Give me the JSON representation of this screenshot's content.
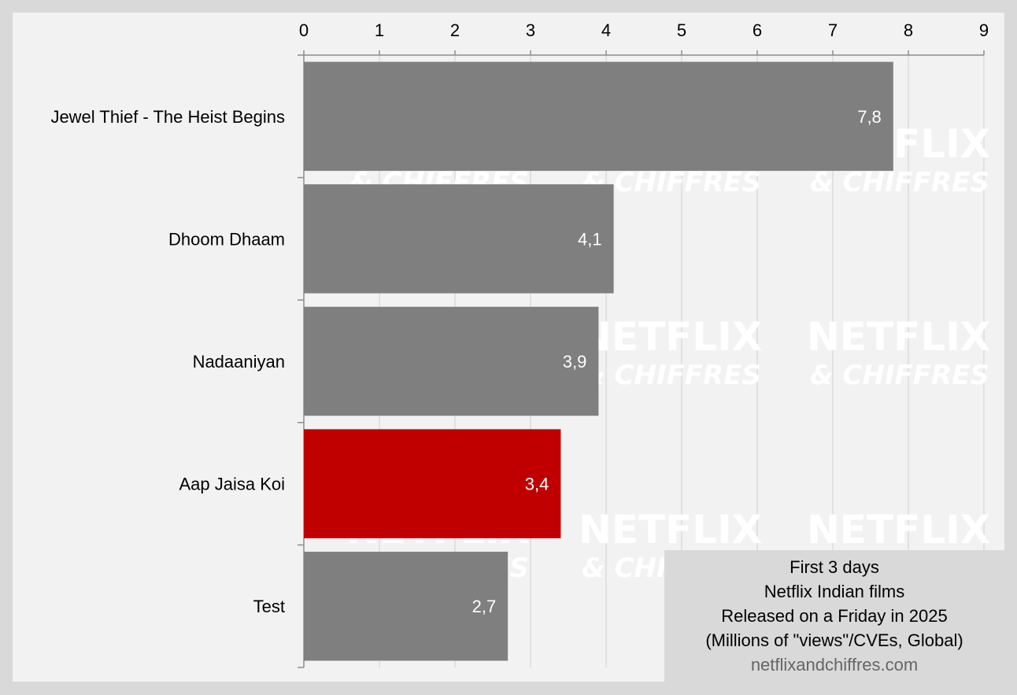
{
  "chart_data": {
    "type": "bar",
    "orientation": "horizontal",
    "categories": [
      "Jewel Thief - The Heist Begins",
      "Dhoom Dhaam",
      "Nadaaniyan",
      "Aap Jaisa Koi",
      "Test"
    ],
    "values": [
      7.8,
      4.1,
      3.9,
      3.4,
      2.7
    ],
    "value_labels": [
      "7,8",
      "4,1",
      "3,9",
      "3,4",
      "2,7"
    ],
    "highlight_index": 3,
    "colors": {
      "default": "#7f7f7f",
      "highlight": "#c00000"
    },
    "xlim": [
      0,
      9
    ],
    "x_ticks": [
      "0",
      "1",
      "2",
      "3",
      "4",
      "5",
      "6",
      "7",
      "8",
      "9"
    ],
    "x_axis_position": "top",
    "grid": true,
    "title": "",
    "xlabel": "",
    "ylabel": ""
  },
  "legend": {
    "lines": [
      "First 3 days",
      "Netflix Indian films",
      "Released on a Friday in 2025",
      "(Millions of \"views\"/CVEs, Global)"
    ],
    "source": "netflixandchiffres.com"
  },
  "watermark": {
    "line1": "NETFLIX",
    "line2": "& CHIFFRES"
  }
}
